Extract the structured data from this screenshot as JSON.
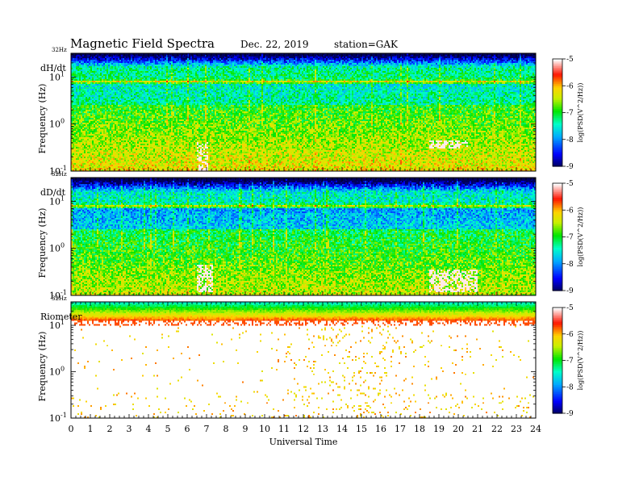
{
  "header": {
    "title": "Magnetic  Field  Spectra",
    "date": "Dec. 22, 2019",
    "station": "station=GAK"
  },
  "chart_data": [
    {
      "type": "heatmap",
      "panel_label": "dH/dt",
      "top_label": "32Hz",
      "ylabel": "Frequency  (Hz)",
      "y_scale": "log",
      "ylim": [
        0.1,
        32
      ],
      "y_ticks": [
        {
          "value": 0.1,
          "base": "10",
          "exp": "-1"
        },
        {
          "value": 1,
          "base": "10",
          "exp": "0"
        },
        {
          "value": 10,
          "base": "10",
          "exp": "1"
        }
      ],
      "xlim": [
        0,
        24
      ],
      "colorbar": {
        "ticks": [
          "-5",
          "-6",
          "-7",
          "-8",
          "-9"
        ],
        "range": [
          -9,
          -5
        ],
        "title": "log(PSD(V^2/Hz))"
      },
      "features": {
        "spectral_line_freq_hz": 8,
        "base_level": -7.3,
        "bursts": [
          {
            "t_start": 6.5,
            "t_end": 7.1,
            "f_low": 0.1,
            "f_high": 0.4
          },
          {
            "t_start": 18.5,
            "t_end": 20.5,
            "f_low": 0.3,
            "f_high": 0.45
          }
        ]
      }
    },
    {
      "type": "heatmap",
      "panel_label": "dD/dt",
      "top_label": "32Hz",
      "ylabel": "Frequency  (Hz)",
      "y_scale": "log",
      "ylim": [
        0.1,
        32
      ],
      "y_ticks": [
        {
          "value": 0.1,
          "base": "10",
          "exp": "-1"
        },
        {
          "value": 1,
          "base": "10",
          "exp": "0"
        },
        {
          "value": 10,
          "base": "10",
          "exp": "1"
        }
      ],
      "xlim": [
        0,
        24
      ],
      "colorbar": {
        "ticks": [
          "-5",
          "-6",
          "-7",
          "-8",
          "-9"
        ],
        "range": [
          -9,
          -5
        ],
        "title": "log(PSD(V^2/Hz))"
      },
      "features": {
        "spectral_line_freq_hz": 8,
        "base_level": -7.5,
        "bursts": [
          {
            "t_start": 6.5,
            "t_end": 7.3,
            "f_low": 0.12,
            "f_high": 0.45
          },
          {
            "t_start": 18.5,
            "t_end": 21,
            "f_low": 0.12,
            "f_high": 0.35
          }
        ]
      }
    },
    {
      "type": "heatmap",
      "panel_label": "Riometer",
      "top_label": "32Hz",
      "ylabel": "Frequency  (Hz)",
      "y_scale": "log",
      "ylim": [
        0.1,
        32
      ],
      "y_ticks": [
        {
          "value": 0.1,
          "base": "10",
          "exp": "-1"
        },
        {
          "value": 1,
          "base": "10",
          "exp": "0"
        },
        {
          "value": 10,
          "base": "10",
          "exp": "1"
        }
      ],
      "xlabel": "Universal  Time",
      "xlim": [
        0,
        24
      ],
      "x_ticks": [
        "0",
        "1",
        "2",
        "3",
        "4",
        "5",
        "6",
        "7",
        "8",
        "9",
        "10",
        "11",
        "12",
        "13",
        "14",
        "15",
        "16",
        "17",
        "18",
        "19",
        "20",
        "21",
        "22",
        "23",
        "24"
      ],
      "colorbar": {
        "ticks": [
          "-5",
          "-6",
          "-7",
          "-8",
          "-9"
        ],
        "range": [
          -9,
          -5
        ],
        "title": "log(PSD(V^2/Hz))"
      },
      "features": {
        "band_freq_range_hz": [
          12,
          32
        ],
        "sparse_region_freq_range_hz": [
          0.1,
          10
        ]
      }
    }
  ]
}
